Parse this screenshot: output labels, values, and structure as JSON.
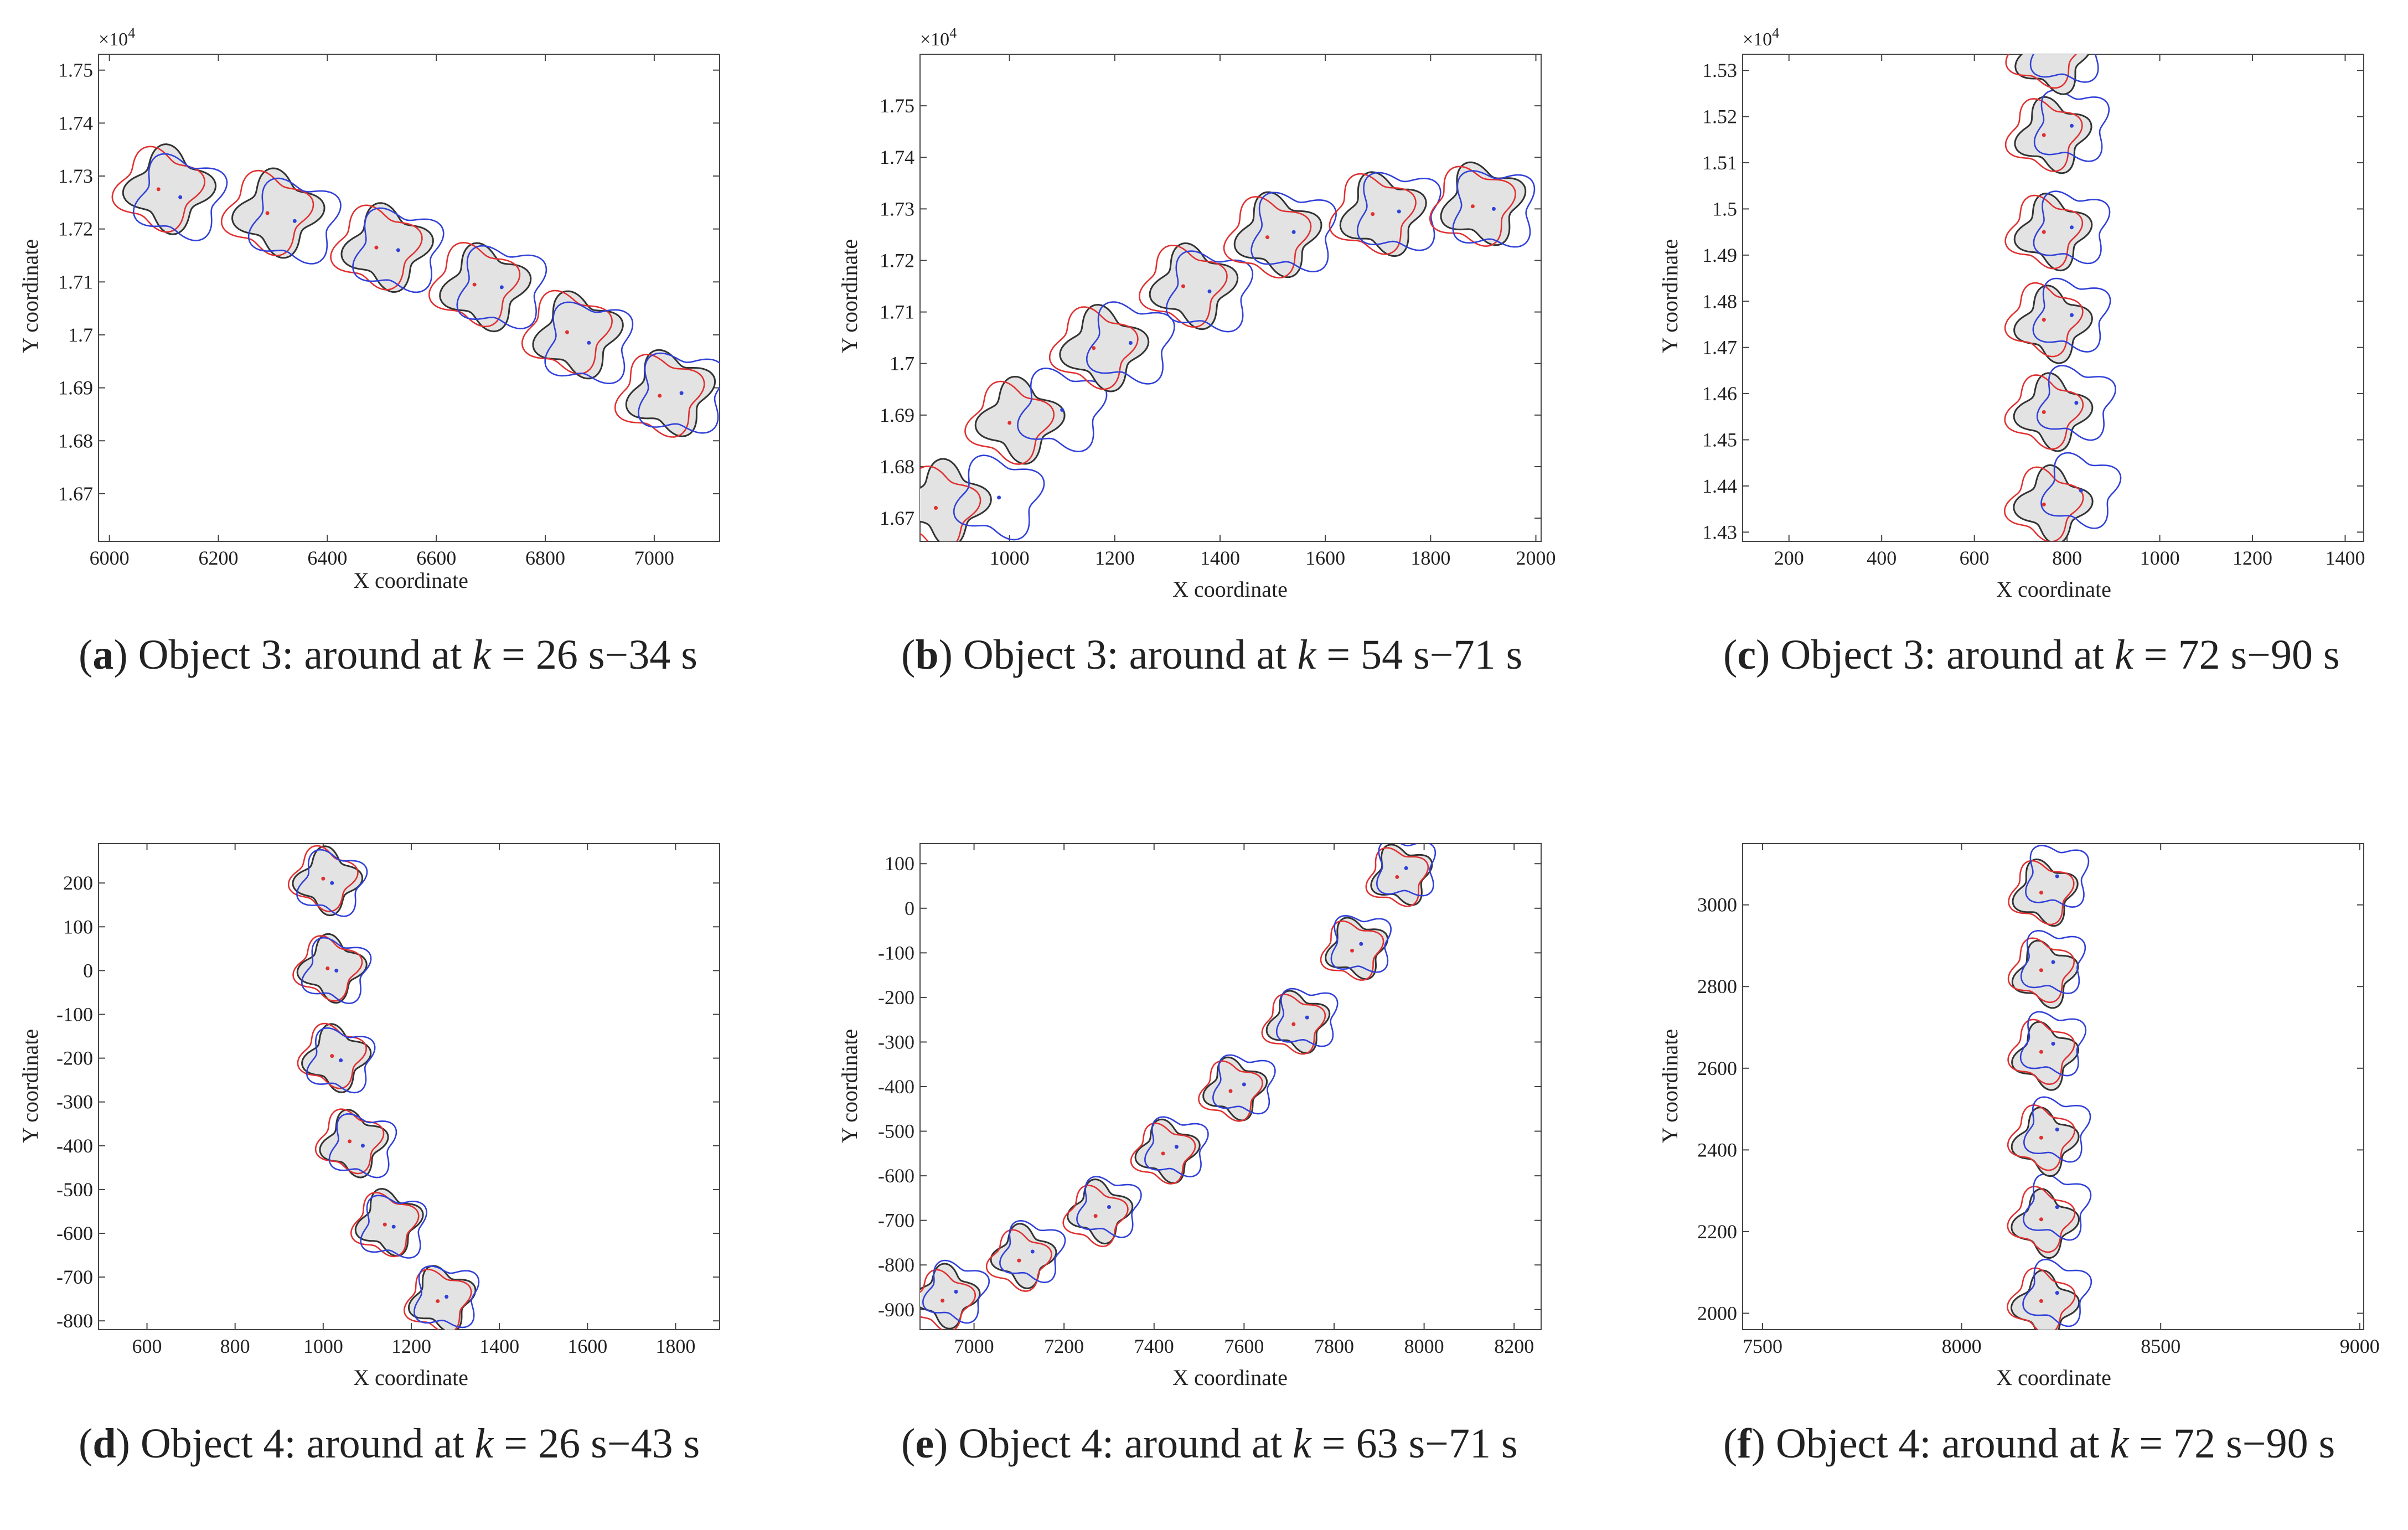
{
  "colors": {
    "black": "#333333",
    "red": "#e03030",
    "blue": "#3040d8",
    "fill": "#e3e3e3"
  },
  "chart_data": [
    {
      "id": "a",
      "type": "scatter",
      "xlabel": "X coordinate",
      "ylabel": "Y coordinate",
      "xlim": [
        5980,
        7120
      ],
      "ylim": [
        16610,
        17530
      ],
      "xticks": [
        6000,
        6200,
        6400,
        6600,
        6800,
        7000
      ],
      "yticks": [
        16700,
        16800,
        16900,
        17000,
        17100,
        17200,
        17300,
        17400,
        17500
      ],
      "ytick_labels": [
        "1.67",
        "1.68",
        "1.69",
        "1.7",
        "1.71",
        "1.72",
        "1.73",
        "1.74",
        "1.75"
      ],
      "exponent": "×10",
      "exponent_power": "4",
      "shape_size": [
        140,
        140
      ],
      "series": [
        {
          "name": "truth",
          "points": [
            [
              6110,
              17275
            ],
            [
              6310,
              17230
            ],
            [
              6510,
              17165
            ],
            [
              6690,
              17090
            ],
            [
              6860,
              17000
            ],
            [
              7030,
              16890
            ]
          ]
        },
        {
          "name": "estimate_red",
          "points": [
            [
              6090,
              17275
            ],
            [
              6290,
              17230
            ],
            [
              6490,
              17165
            ],
            [
              6670,
              17095
            ],
            [
              6840,
              17005
            ],
            [
              7010,
              16885
            ]
          ]
        },
        {
          "name": "estimate_blue",
          "points": [
            [
              6130,
              17260
            ],
            [
              6340,
              17215
            ],
            [
              6530,
              17160
            ],
            [
              6720,
              17090
            ],
            [
              6880,
              16985
            ],
            [
              7050,
              16890
            ]
          ]
        }
      ],
      "caption": {
        "label": "a",
        "object": "Object 3:",
        "word1": "around",
        "word2": "at",
        "var": "k",
        "eq": "=",
        "range": "26 s−34 s"
      }
    },
    {
      "id": "b",
      "type": "scatter",
      "xlabel": "X coordinate",
      "ylabel": "Y coordinate",
      "xlim": [
        830,
        2010
      ],
      "ylim": [
        16655,
        17600
      ],
      "xticks": [
        1000,
        1200,
        1400,
        1600,
        1800,
        2000
      ],
      "yticks": [
        16700,
        16800,
        16900,
        17000,
        17100,
        17200,
        17300,
        17400,
        17500
      ],
      "ytick_labels": [
        "1.67",
        "1.68",
        "1.69",
        "1.7",
        "1.71",
        "1.72",
        "1.73",
        "1.74",
        "1.75"
      ],
      "exponent": "×10",
      "exponent_power": "4",
      "shape_size": [
        140,
        140
      ],
      "series": [
        {
          "name": "truth",
          "points": [
            [
              880,
              16730
            ],
            [
              1020,
              16890
            ],
            [
              1180,
              17030
            ],
            [
              1350,
              17150
            ],
            [
              1510,
              17250
            ],
            [
              1710,
              17290
            ],
            [
              1900,
              17310
            ]
          ]
        },
        {
          "name": "estimate_red",
          "points": [
            [
              860,
              16720
            ],
            [
              1000,
              16885
            ],
            [
              1160,
              17030
            ],
            [
              1330,
              17150
            ],
            [
              1490,
              17245
            ],
            [
              1690,
              17290
            ],
            [
              1880,
              17305
            ]
          ]
        },
        {
          "name": "estimate_blue",
          "points": [
            [
              980,
              16740
            ],
            [
              1100,
              16910
            ],
            [
              1230,
              17040
            ],
            [
              1380,
              17140
            ],
            [
              1540,
              17255
            ],
            [
              1740,
              17295
            ],
            [
              1920,
              17300
            ]
          ]
        }
      ],
      "caption": {
        "label": "b",
        "object": "Object 3:",
        "word1": "around",
        "word2": "at",
        "var": "k",
        "eq": "=",
        "range": "54 s−71 s"
      }
    },
    {
      "id": "c",
      "type": "scatter",
      "xlabel": "X coordinate",
      "ylabel": "Y coordinate",
      "xlim": [
        100,
        1440
      ],
      "ylim": [
        14280,
        15335
      ],
      "xticks": [
        200,
        400,
        600,
        800,
        1000,
        1200,
        1400
      ],
      "yticks": [
        14300,
        14400,
        14500,
        14600,
        14700,
        14800,
        14900,
        15000,
        15100,
        15200,
        15300
      ],
      "ytick_labels": [
        "1.43",
        "1.44",
        "1.45",
        "1.46",
        "1.47",
        "1.48",
        "1.49",
        "1.5",
        "1.51",
        "1.52",
        "1.53"
      ],
      "exponent": "×10",
      "exponent_power": "4",
      "shape_size": [
        140,
        140
      ],
      "series": [
        {
          "name": "truth",
          "points": [
            [
              770,
              14360
            ],
            [
              770,
              14560
            ],
            [
              770,
              14750
            ],
            [
              770,
              14950
            ],
            [
              770,
              15160
            ],
            [
              770,
              15330
            ]
          ]
        },
        {
          "name": "estimate_red",
          "points": [
            [
              750,
              14360
            ],
            [
              750,
              14560
            ],
            [
              750,
              14760
            ],
            [
              750,
              14950
            ],
            [
              750,
              15160
            ],
            [
              750,
              15340
            ]
          ]
        },
        {
          "name": "estimate_blue",
          "points": [
            [
              830,
              14390
            ],
            [
              820,
              14580
            ],
            [
              810,
              14770
            ],
            [
              810,
              14960
            ],
            [
              810,
              15180
            ],
            [
              800,
              15350
            ]
          ]
        }
      ],
      "caption": {
        "label": "c",
        "object": "Object 3:",
        "word1": "around",
        "word2": "at",
        "var": "k",
        "eq": "=",
        "range": "72 s−90 s"
      }
    },
    {
      "id": "d",
      "type": "scatter",
      "xlabel": "X coordinate",
      "ylabel": "Y coordinate",
      "xlim": [
        490,
        1900
      ],
      "ylim": [
        -820,
        290
      ],
      "xticks": [
        600,
        800,
        1000,
        1200,
        1400,
        1600,
        1800
      ],
      "yticks": [
        -800,
        -700,
        -600,
        -500,
        -400,
        -300,
        -200,
        -100,
        0,
        100,
        200
      ],
      "ytick_labels": [
        "-800",
        "-700",
        "-600",
        "-500",
        "-400",
        "-300",
        "-200",
        "-100",
        "0",
        "100",
        "200"
      ],
      "exponent": "",
      "exponent_power": "",
      "shape_size": [
        130,
        130
      ],
      "series": [
        {
          "name": "truth",
          "points": [
            [
              1010,
              205
            ],
            [
              1020,
              5
            ],
            [
              1030,
              -200
            ],
            [
              1070,
              -395
            ],
            [
              1150,
              -575
            ],
            [
              1270,
              -750
            ]
          ]
        },
        {
          "name": "estimate_red",
          "points": [
            [
              1000,
              210
            ],
            [
              1010,
              5
            ],
            [
              1020,
              -195
            ],
            [
              1060,
              -390
            ],
            [
              1140,
              -580
            ],
            [
              1260,
              -755
            ]
          ]
        },
        {
          "name": "estimate_blue",
          "points": [
            [
              1020,
              200
            ],
            [
              1030,
              0
            ],
            [
              1040,
              -205
            ],
            [
              1090,
              -400
            ],
            [
              1160,
              -585
            ],
            [
              1280,
              -745
            ]
          ]
        }
      ],
      "caption": {
        "label": "d",
        "object": "Object 4:",
        "word1": "around",
        "word2": "at",
        "var": "k",
        "eq": "=",
        "range": "26 s−43 s"
      }
    },
    {
      "id": "e",
      "type": "scatter",
      "xlabel": "X coordinate",
      "ylabel": "Y coordinate",
      "xlim": [
        6880,
        8260
      ],
      "ylim": [
        -945,
        145
      ],
      "xticks": [
        7000,
        7200,
        7400,
        7600,
        7800,
        8000,
        8200
      ],
      "yticks": [
        -900,
        -800,
        -700,
        -600,
        -500,
        -400,
        -300,
        -200,
        -100,
        0,
        100
      ],
      "ytick_labels": [
        "-900",
        "-800",
        "-700",
        "-600",
        "-500",
        "-400",
        "-300",
        "-200",
        "-100",
        "0",
        "100"
      ],
      "exponent": "",
      "exponent_power": "",
      "shape_size": [
        120,
        120
      ],
      "series": [
        {
          "name": "truth",
          "points": [
            [
              6940,
              -870
            ],
            [
              7110,
              -780
            ],
            [
              7280,
              -680
            ],
            [
              7430,
              -545
            ],
            [
              7580,
              -405
            ],
            [
              7720,
              -255
            ],
            [
              7850,
              -90
            ],
            [
              7950,
              75
            ]
          ]
        },
        {
          "name": "estimate_red",
          "points": [
            [
              6930,
              -880
            ],
            [
              7100,
              -790
            ],
            [
              7270,
              -690
            ],
            [
              7420,
              -550
            ],
            [
              7570,
              -410
            ],
            [
              7710,
              -260
            ],
            [
              7840,
              -95
            ],
            [
              7940,
              70
            ]
          ]
        },
        {
          "name": "estimate_blue",
          "points": [
            [
              6960,
              -860
            ],
            [
              7130,
              -770
            ],
            [
              7300,
              -670
            ],
            [
              7450,
              -535
            ],
            [
              7600,
              -395
            ],
            [
              7740,
              -245
            ],
            [
              7860,
              -80
            ],
            [
              7960,
              90
            ]
          ]
        }
      ],
      "caption": {
        "label": "e",
        "object": "Object 4:",
        "word1": "around",
        "word2": "at",
        "var": "k",
        "eq": "=",
        "range": "63 s−71 s"
      }
    },
    {
      "id": "f",
      "type": "scatter",
      "xlabel": "X coordinate",
      "ylabel": "Y coordinate",
      "xlim": [
        7450,
        9010
      ],
      "ylim": [
        1960,
        3150
      ],
      "xticks": [
        7500,
        8000,
        8500,
        9000
      ],
      "yticks": [
        2000,
        2200,
        2400,
        2600,
        2800,
        3000
      ],
      "ytick_labels": [
        "2000",
        "2200",
        "2400",
        "2600",
        "2800",
        "3000"
      ],
      "exponent": "",
      "exponent_power": "",
      "shape_size": [
        140,
        140
      ],
      "series": [
        {
          "name": "truth",
          "points": [
            [
              8210,
              2020
            ],
            [
              8210,
              2220
            ],
            [
              8210,
              2420
            ],
            [
              8210,
              2630
            ],
            [
              8210,
              2830
            ],
            [
              8210,
              3030
            ]
          ]
        },
        {
          "name": "estimate_red",
          "points": [
            [
              8200,
              2030
            ],
            [
              8200,
              2230
            ],
            [
              8200,
              2430
            ],
            [
              8200,
              2640
            ],
            [
              8200,
              2840
            ],
            [
              8200,
              3030
            ]
          ]
        },
        {
          "name": "estimate_blue",
          "points": [
            [
              8240,
              2050
            ],
            [
              8240,
              2260
            ],
            [
              8240,
              2450
            ],
            [
              8230,
              2660
            ],
            [
              8230,
              2860
            ],
            [
              8240,
              3070
            ]
          ]
        }
      ],
      "caption": {
        "label": "f",
        "object": "Object 4:",
        "word1": "around",
        "word2": "at",
        "var": "k",
        "eq": "=",
        "range": "72 s−90 s"
      }
    }
  ]
}
